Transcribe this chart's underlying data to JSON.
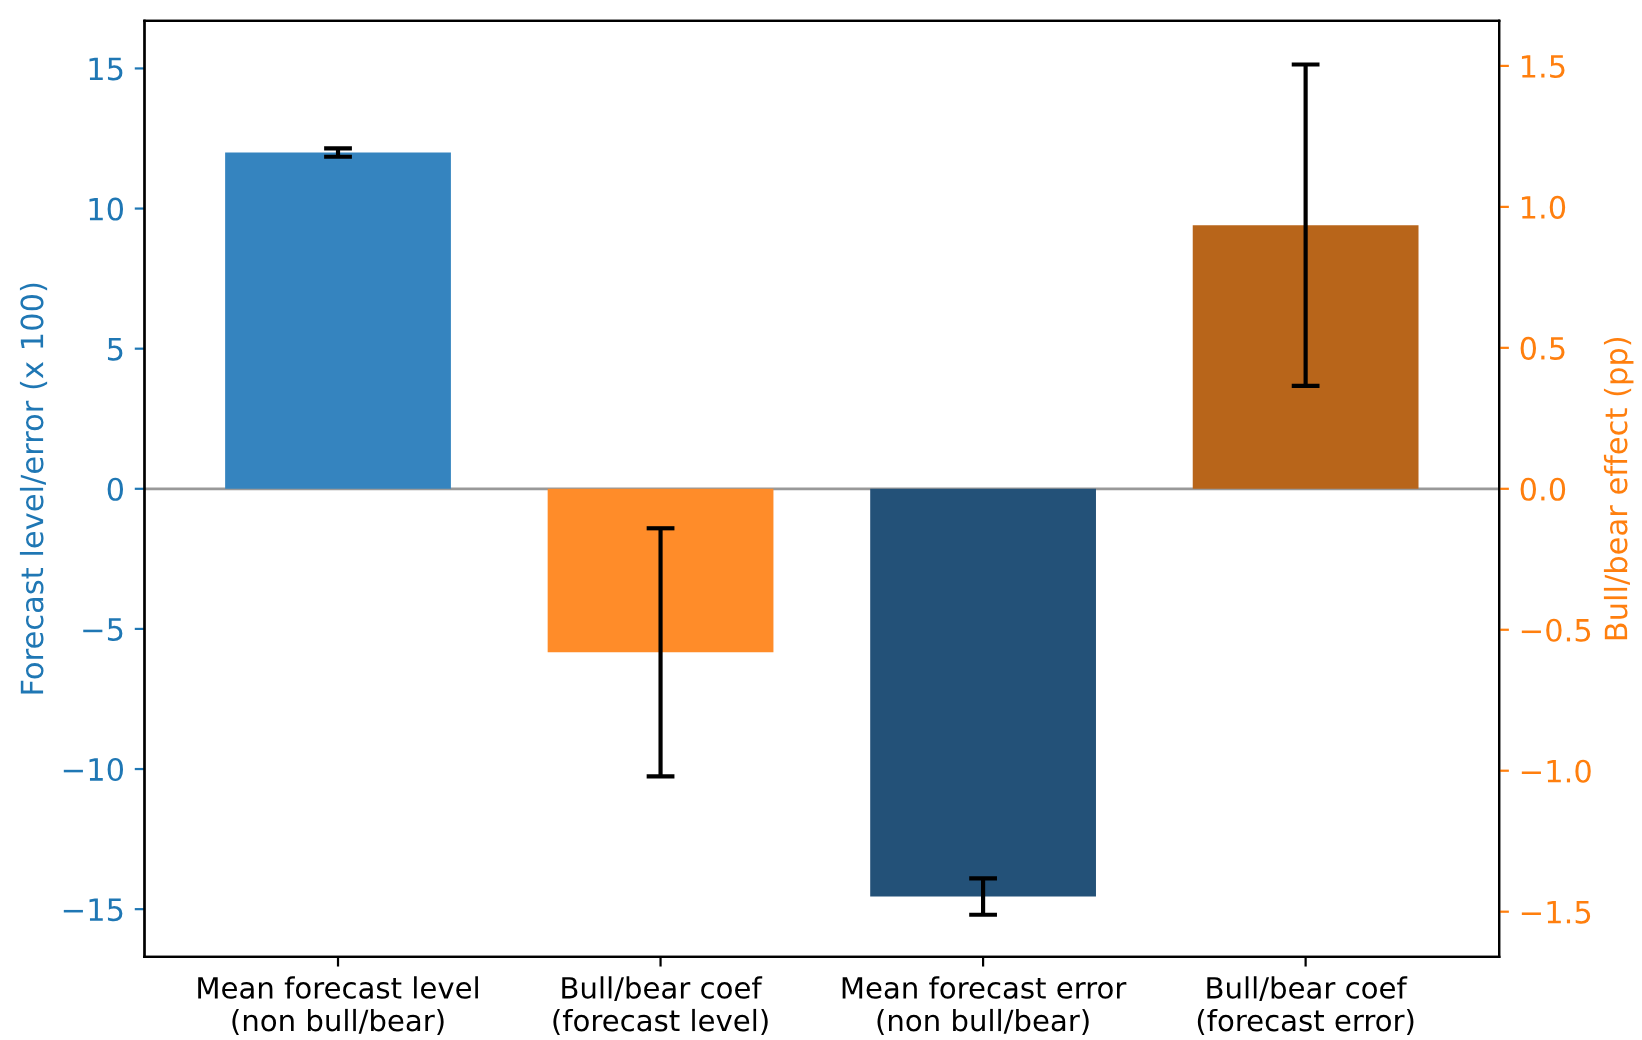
{
  "chart_data": {
    "type": "bar",
    "categories": [
      "Mean forecast level\n(non bull/bear)",
      "Bull/bear coef\n(forecast level)",
      "Mean forecast error\n(non bull/bear)",
      "Bull/bear coef\n(forecast error)"
    ],
    "series": [
      {
        "axis": "y",
        "colors": [
          "#3584bf",
          null,
          "#235178",
          null
        ],
        "values": [
          12.0,
          null,
          -14.55,
          null
        ],
        "errors": [
          0.15,
          null,
          0.65,
          null
        ]
      },
      {
        "axis": "y2",
        "colors": [
          null,
          "#ff8c29",
          null,
          "#b8651a"
        ],
        "values": [
          null,
          -0.58,
          null,
          0.935
        ],
        "errors": [
          null,
          0.44,
          null,
          0.57
        ]
      }
    ],
    "ylabel": "Forecast level/error (x 100)",
    "y2label": "Bull/bear effect (pp)",
    "ylim": [
      -16.7,
      16.7
    ],
    "yticks": [
      {
        "value": -15,
        "label": "−15"
      },
      {
        "value": -10,
        "label": "−10"
      },
      {
        "value": -5,
        "label": "−5"
      },
      0,
      5,
      10,
      15
    ],
    "y2lim": [
      -1.66,
      1.66
    ],
    "y2ticks": [
      {
        "value": -1.5,
        "label": "−1.5"
      },
      {
        "value": -1.0,
        "label": "−1.0"
      },
      {
        "value": -0.5,
        "label": "−0.5"
      },
      {
        "value": 0,
        "label": "0.0"
      },
      {
        "value": 0.5,
        "label": "0.5"
      },
      {
        "value": 1.0,
        "label": "1.0"
      },
      {
        "value": 1.5,
        "label": "1.5"
      }
    ],
    "ref_lines": [
      {
        "axis": "y",
        "value": 0,
        "color": "#999999"
      }
    ],
    "grid": false,
    "legend": false
  }
}
